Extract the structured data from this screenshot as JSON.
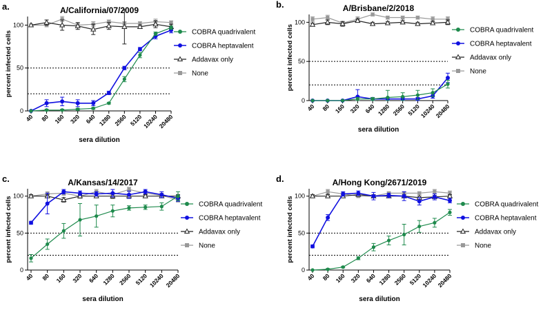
{
  "colors": {
    "quadrivalent": "#1e8a4c",
    "heptavalent": "#1010e0",
    "addavax": "#222222",
    "none": "#999999",
    "axis": "#000000"
  },
  "legend": {
    "quadrivalent": "COBRA quadrivalent",
    "heptavalent": "COBRA heptavalent",
    "addavax": "Addavax only",
    "none": "None"
  },
  "chart_data": [
    {
      "type": "line",
      "panel_label": "a.",
      "title": "A/California/07/2009",
      "xlabel": "sera dilution",
      "ylabel": "percent infected cells",
      "categories": [
        "40",
        "80",
        "160",
        "320",
        "640",
        "1280",
        "2560",
        "5120",
        "10240",
        "20480"
      ],
      "yticks": [
        0,
        50,
        100
      ],
      "ylim": [
        0,
        110
      ],
      "reference_lines": [
        50,
        20
      ],
      "series": [
        {
          "key": "quadrivalent",
          "name": "COBRA quadrivalent",
          "marker": "circle",
          "values": [
            0,
            1,
            1,
            2,
            3,
            9,
            37,
            65,
            90,
            97
          ],
          "errors": [
            0,
            1,
            1,
            1,
            1,
            1,
            3,
            3,
            2,
            2
          ]
        },
        {
          "key": "heptavalent",
          "name": "COBRA heptavalent",
          "marker": "circle",
          "values": [
            0,
            9,
            11,
            9,
            9,
            21,
            50,
            72,
            87,
            94
          ],
          "errors": [
            0,
            4,
            5,
            4,
            3,
            2,
            2,
            2,
            3,
            3
          ]
        },
        {
          "key": "addavax",
          "name": "Addavax only",
          "marker": "triangle",
          "values": [
            100,
            103,
            100,
            99,
            95,
            99,
            98,
            98,
            101,
            98
          ],
          "errors": [
            0,
            3,
            6,
            4,
            6,
            4,
            20,
            2,
            4,
            3
          ]
        },
        {
          "key": "none",
          "name": "None",
          "marker": "square",
          "values": [
            100,
            100,
            107,
            100,
            101,
            104,
            102,
            102,
            104,
            103
          ],
          "errors": [
            0,
            2,
            3,
            2,
            3,
            2,
            2,
            2,
            3,
            2
          ]
        }
      ]
    },
    {
      "type": "line",
      "panel_label": "b.",
      "title": "A/Brisbane/2/2018",
      "xlabel": "sera dilution",
      "ylabel": "percent infected cells",
      "categories": [
        "40",
        "80",
        "160",
        "320",
        "640",
        "1280",
        "2560",
        "5120",
        "10240",
        "20480"
      ],
      "yticks": [
        0,
        50,
        100
      ],
      "ylim": [
        0,
        110
      ],
      "reference_lines": [
        50,
        20
      ],
      "series": [
        {
          "key": "quadrivalent",
          "name": "COBRA quadrivalent",
          "marker": "circle",
          "values": [
            0,
            0,
            0,
            2,
            2,
            4,
            5,
            7,
            10,
            21
          ],
          "errors": [
            0,
            0,
            0,
            2,
            2,
            9,
            5,
            6,
            5,
            5
          ]
        },
        {
          "key": "heptavalent",
          "name": "COBRA heptavalent",
          "marker": "circle",
          "values": [
            0,
            0,
            0,
            5,
            2,
            2,
            2,
            2,
            6,
            29
          ],
          "errors": [
            0,
            0,
            0,
            9,
            2,
            2,
            2,
            2,
            3,
            6
          ]
        },
        {
          "key": "addavax",
          "name": "Addavax only",
          "marker": "triangle",
          "values": [
            97,
            100,
            98,
            102,
            98,
            99,
            100,
            98,
            99,
            100
          ],
          "errors": [
            2,
            3,
            3,
            2,
            2,
            2,
            2,
            2,
            2,
            3
          ]
        },
        {
          "key": "none",
          "name": "None",
          "marker": "square",
          "values": [
            104,
            106,
            99,
            104,
            110,
            106,
            106,
            106,
            104,
            104
          ],
          "errors": [
            3,
            3,
            2,
            3,
            2,
            2,
            2,
            2,
            3,
            3
          ]
        }
      ]
    },
    {
      "type": "line",
      "panel_label": "c.",
      "title": "A/Kansas/14/2017",
      "xlabel": "sera dilution",
      "ylabel": "percent infected cells",
      "categories": [
        "40",
        "80",
        "160",
        "320",
        "640",
        "1280",
        "2560",
        "5120",
        "10240",
        "20480"
      ],
      "yticks": [
        0,
        50,
        100
      ],
      "ylim": [
        0,
        110
      ],
      "reference_lines": [
        50,
        20
      ],
      "series": [
        {
          "key": "quadrivalent",
          "name": "COBRA quadrivalent",
          "marker": "circle",
          "values": [
            16,
            35,
            53,
            68,
            73,
            80,
            84,
            85,
            86,
            100
          ],
          "errors": [
            5,
            7,
            10,
            22,
            15,
            8,
            3,
            3,
            5,
            6
          ]
        },
        {
          "key": "heptavalent",
          "name": "COBRA heptavalent",
          "marker": "circle",
          "values": [
            64,
            90,
            106,
            104,
            103,
            104,
            102,
            106,
            102,
            97
          ],
          "errors": [
            2,
            14,
            3,
            3,
            3,
            5,
            5,
            3,
            4,
            4
          ]
        },
        {
          "key": "addavax",
          "name": "Addavax only",
          "marker": "triangle",
          "values": [
            100,
            100,
            95,
            100,
            100,
            100,
            100,
            100,
            100,
            100
          ],
          "errors": [
            2,
            2,
            3,
            2,
            2,
            3,
            3,
            2,
            2,
            2
          ]
        },
        {
          "key": "none",
          "name": "None",
          "marker": "square",
          "values": [
            100,
            103,
            104,
            100,
            106,
            102,
            109,
            104,
            101,
            95
          ],
          "errors": [
            2,
            3,
            3,
            3,
            3,
            3,
            3,
            3,
            3,
            3
          ]
        }
      ]
    },
    {
      "type": "line",
      "panel_label": "d.",
      "title": "A/Hong Kong/2671/2019",
      "xlabel": "sera dilution",
      "ylabel": "percent infected cells",
      "categories": [
        "40",
        "80",
        "160",
        "320",
        "640",
        "1280",
        "2560",
        "5120",
        "10240",
        "20480"
      ],
      "yticks": [
        0,
        50,
        100
      ],
      "ylim": [
        0,
        110
      ],
      "reference_lines": [
        50,
        20
      ],
      "series": [
        {
          "key": "quadrivalent",
          "name": "COBRA quadrivalent",
          "marker": "circle",
          "values": [
            0,
            1,
            4,
            16,
            31,
            40,
            48,
            59,
            64,
            78
          ],
          "errors": [
            0,
            1,
            1,
            2,
            5,
            6,
            14,
            8,
            6,
            4
          ]
        },
        {
          "key": "heptavalent",
          "name": "COBRA heptavalent",
          "marker": "circle",
          "values": [
            32,
            71,
            103,
            104,
            100,
            101,
            100,
            93,
            99,
            94
          ],
          "errors": [
            2,
            4,
            3,
            3,
            5,
            3,
            6,
            5,
            4,
            3
          ]
        },
        {
          "key": "addavax",
          "name": "Addavax only",
          "marker": "triangle",
          "values": [
            100,
            100,
            100,
            102,
            100,
            100,
            100,
            98,
            99,
            100
          ],
          "errors": [
            2,
            2,
            2,
            2,
            2,
            2,
            2,
            2,
            2,
            2
          ]
        },
        {
          "key": "none",
          "name": "None",
          "marker": "square",
          "values": [
            100,
            106,
            103,
            100,
            100,
            104,
            104,
            104,
            106,
            104
          ],
          "errors": [
            2,
            3,
            2,
            2,
            2,
            2,
            2,
            2,
            3,
            3
          ]
        }
      ]
    }
  ]
}
